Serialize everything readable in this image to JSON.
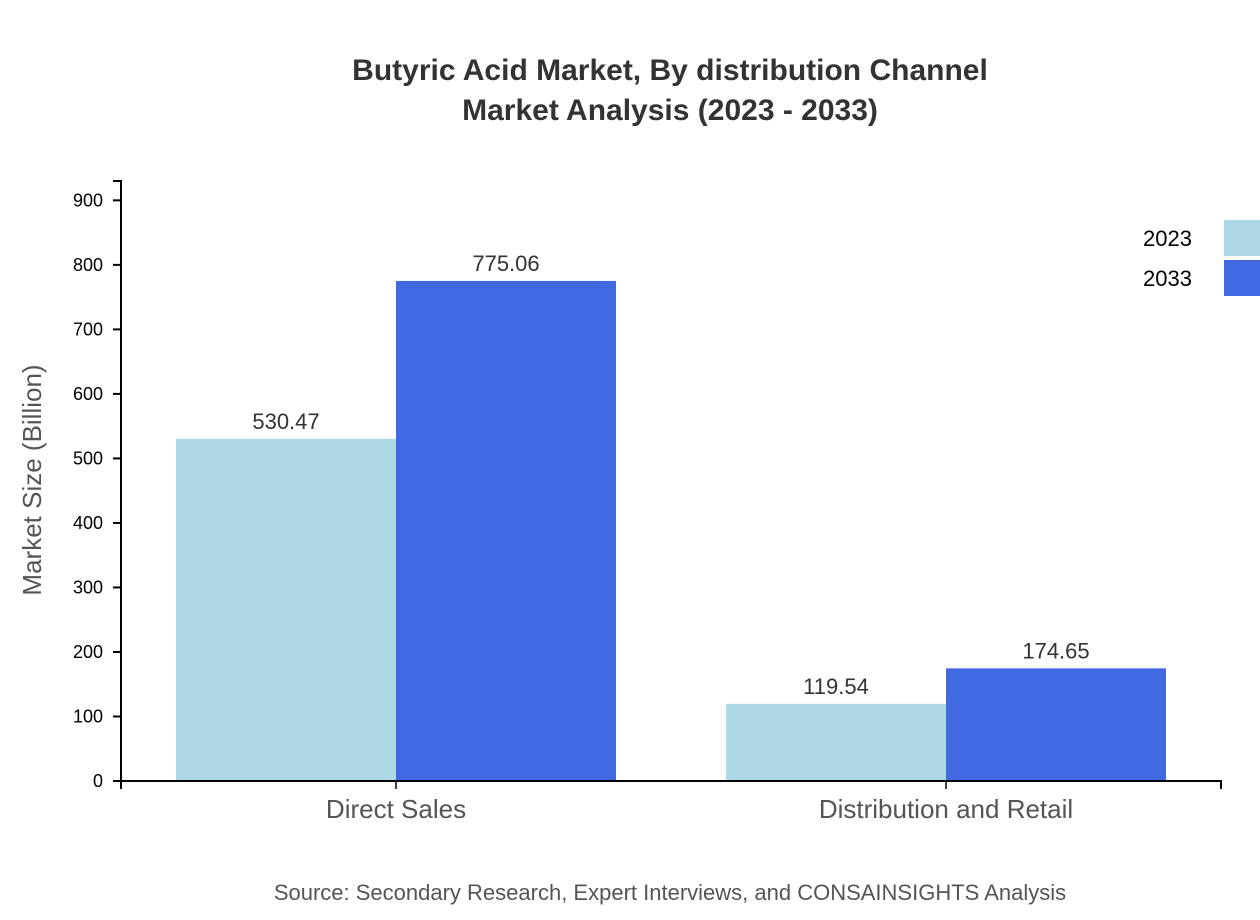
{
  "chart_data": {
    "type": "bar",
    "title": [
      "Butyric Acid Market, By distribution Channel",
      "Market Analysis (2023 - 2033)"
    ],
    "xlabel": "",
    "ylabel": "Market Size (Billion)",
    "categories": [
      "Direct Sales",
      "Distribution and Retail"
    ],
    "series": [
      {
        "name": "2023",
        "values": [
          530.47,
          119.54
        ],
        "color": "#add8e6"
      },
      {
        "name": "2033",
        "values": [
          775.06,
          174.65
        ],
        "color": "#4169e1"
      }
    ],
    "ylim": [
      0,
      930
    ],
    "yticks": [
      0,
      100,
      200,
      300,
      400,
      500,
      600,
      700,
      800,
      900
    ],
    "grid": false,
    "legend": "top-right",
    "source": "Source: Secondary Research, Expert Interviews, and CONSAINSIGHTS Analysis"
  }
}
